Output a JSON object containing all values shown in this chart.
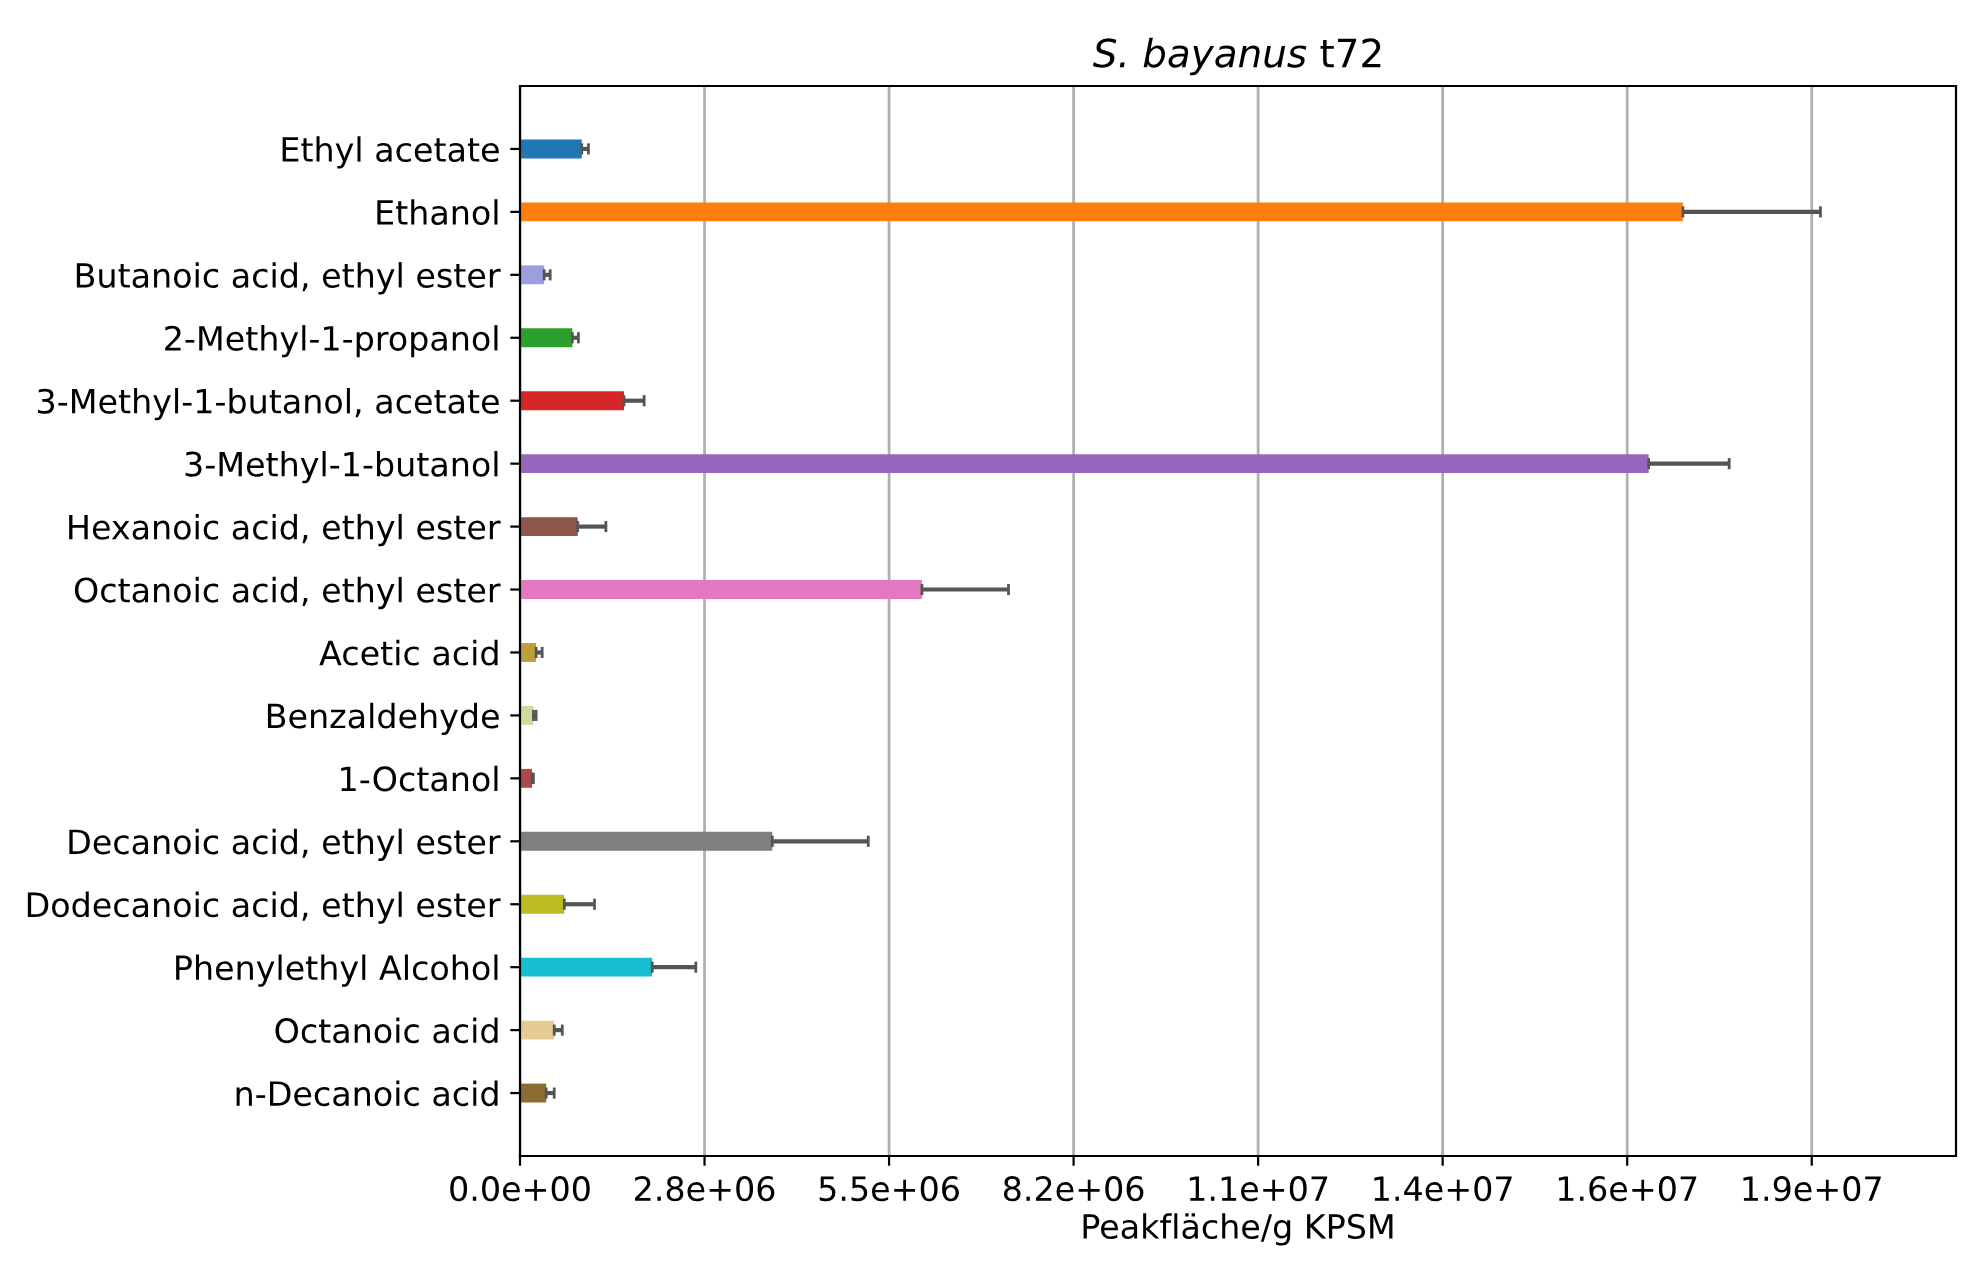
{
  "chart_data": {
    "type": "bar",
    "orientation": "horizontal",
    "title": "S. bayanus t72",
    "xlabel": "Peakfläche/g KPSM",
    "categories": [
      "Ethyl acetate",
      "Ethanol",
      "Butanoic acid, ethyl ester",
      "2-Methyl-1-propanol",
      "3-Methyl-1-butanol, acetate",
      "3-Methyl-1-butanol",
      "Hexanoic acid, ethyl ester",
      "Octanoic acid, ethyl ester",
      "Acetic acid",
      "Benzaldehyde",
      "1-Octanol",
      "Decanoic acid, ethyl ester",
      "Dodecanoic acid, ethyl ester",
      "Phenylethyl Alcohol",
      "Octanoic acid",
      "n-Decanoic acid"
    ],
    "values": [
      920000,
      17330000,
      360000,
      780000,
      1550000,
      16820000,
      860000,
      5990000,
      240000,
      200000,
      180000,
      3760000,
      660000,
      1970000,
      510000,
      390000
    ],
    "errors": [
      [
        920000,
        1020000
      ],
      [
        17330000,
        19380000
      ],
      [
        360000,
        450000
      ],
      [
        780000,
        870000
      ],
      [
        1550000,
        1850000
      ],
      [
        16820000,
        18020000
      ],
      [
        860000,
        1280000
      ],
      [
        5990000,
        7280000
      ],
      [
        240000,
        330000
      ],
      [
        200000,
        240000
      ],
      [
        180000,
        200000
      ],
      [
        3760000,
        5190000
      ],
      [
        660000,
        1110000
      ],
      [
        1970000,
        2620000
      ],
      [
        510000,
        630000
      ],
      [
        390000,
        510000
      ]
    ],
    "colors": [
      "#1f77b4",
      "#ff7f0e",
      "#9c9ede",
      "#2ca02c",
      "#d62728",
      "#9467bd",
      "#8c564b",
      "#e377c2",
      "#bd9e39",
      "#cedb9c",
      "#ad494a",
      "#7f7f7f",
      "#bcbd22",
      "#17becf",
      "#e7cb94",
      "#8c6d31"
    ],
    "xlim": [
      0,
      21400000
    ],
    "xticks": [
      {
        "value": 0,
        "label": "0.0e+00"
      },
      {
        "value": 2750000,
        "label": "2.8e+06"
      },
      {
        "value": 5500000,
        "label": "5.5e+06"
      },
      {
        "value": 8250000,
        "label": "8.2e+06"
      },
      {
        "value": 11000000,
        "label": "1.1e+07"
      },
      {
        "value": 13750000,
        "label": "1.4e+07"
      },
      {
        "value": 16500000,
        "label": "1.6e+07"
      },
      {
        "value": 19250000,
        "label": "1.9e+07"
      }
    ],
    "grid": "x"
  }
}
